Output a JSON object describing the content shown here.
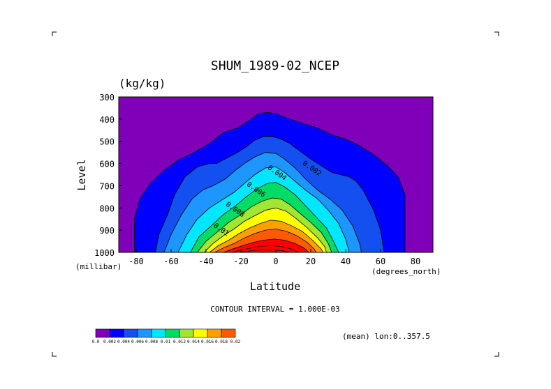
{
  "chart_data": {
    "type": "contour",
    "title": "SHUM_1989-02_NCEP",
    "units": "(kg/kg)",
    "xlabel": "Latitude",
    "ylabel": "Level",
    "x_unit_label": "(degrees_north)",
    "y_unit_label": "(millibar)",
    "xlim": [
      -90,
      90
    ],
    "ylim": [
      1000,
      300
    ],
    "x_ticks": [
      -80,
      -60,
      -40,
      -20,
      0,
      20,
      40,
      60,
      80
    ],
    "y_ticks": [
      300,
      400,
      500,
      600,
      700,
      800,
      900,
      1000
    ],
    "contour_interval_text": "CONTOUR INTERVAL = 1.000E-03",
    "footer_text": "(mean) lon:0..357.5",
    "colorbar": {
      "labels": [
        "0.0",
        "0.002",
        "0.004",
        "0.006",
        "0.008",
        "0.01",
        "0.012",
        "0.014",
        "0.016",
        "0.018",
        "0.02"
      ],
      "colors": [
        "#7f00b8",
        "#0000ff",
        "#1450f0",
        "#1e96ff",
        "#00e6ff",
        "#00dc64",
        "#a0e632",
        "#ffff00",
        "#ffa000",
        "#ff5a00",
        "#ff0000"
      ]
    },
    "contour_labels": [
      {
        "text": "0.002",
        "lat": 20,
        "lev": 630
      },
      {
        "text": "0.004",
        "lat": 0,
        "lev": 650
      },
      {
        "text": "0.006",
        "lat": -12,
        "lev": 725
      },
      {
        "text": "0.008",
        "lat": -24,
        "lev": 815
      },
      {
        "text": "0.01",
        "lat": -32,
        "lev": 905
      }
    ],
    "levels": [
      {
        "value": 0.001,
        "line": true,
        "fill": "#0000ff",
        "points": [
          [
            -81,
            1000
          ],
          [
            -81,
            850
          ],
          [
            -78,
            760
          ],
          [
            -72,
            690
          ],
          [
            -64,
            630
          ],
          [
            -56,
            585
          ],
          [
            -48,
            555
          ],
          [
            -38,
            510
          ],
          [
            -30,
            460
          ],
          [
            -22,
            440
          ],
          [
            -15,
            405
          ],
          [
            -10,
            375
          ],
          [
            -5,
            370
          ],
          [
            0,
            375
          ],
          [
            8,
            400
          ],
          [
            16,
            420
          ],
          [
            24,
            440
          ],
          [
            32,
            470
          ],
          [
            40,
            490
          ],
          [
            48,
            520
          ],
          [
            56,
            560
          ],
          [
            64,
            610
          ],
          [
            70,
            660
          ],
          [
            74,
            740
          ],
          [
            74,
            850
          ],
          [
            74,
            1000
          ]
        ]
      },
      {
        "value": 0.002,
        "line": true,
        "fill": "#1450f0",
        "points": [
          [
            -69,
            1000
          ],
          [
            -67,
            920
          ],
          [
            -62,
            830
          ],
          [
            -58,
            740
          ],
          [
            -52,
            660
          ],
          [
            -45,
            615
          ],
          [
            -38,
            600
          ],
          [
            -34,
            600
          ],
          [
            -28,
            575
          ],
          [
            -22,
            550
          ],
          [
            -17,
            525
          ],
          [
            -12,
            495
          ],
          [
            -7,
            478
          ],
          [
            -2,
            478
          ],
          [
            3,
            490
          ],
          [
            8,
            510
          ],
          [
            14,
            545
          ],
          [
            20,
            580
          ],
          [
            26,
            610
          ],
          [
            32,
            640
          ],
          [
            37,
            650
          ],
          [
            42,
            660
          ],
          [
            46,
            680
          ],
          [
            50,
            720
          ],
          [
            56,
            810
          ],
          [
            60,
            900
          ],
          [
            62,
            1000
          ]
        ]
      },
      {
        "value": 0.003,
        "line": true,
        "fill": "#1e96ff",
        "points": [
          [
            -64,
            1000
          ],
          [
            -60,
            920
          ],
          [
            -54,
            830
          ],
          [
            -48,
            760
          ],
          [
            -42,
            720
          ],
          [
            -36,
            700
          ],
          [
            -29,
            670
          ],
          [
            -23,
            630
          ],
          [
            -18,
            600
          ],
          [
            -12,
            570
          ],
          [
            -6,
            550
          ],
          [
            0,
            555
          ],
          [
            5,
            580
          ],
          [
            11,
            620
          ],
          [
            17,
            670
          ],
          [
            24,
            720
          ],
          [
            31,
            760
          ],
          [
            38,
            810
          ],
          [
            44,
            880
          ],
          [
            48,
            960
          ],
          [
            49,
            1000
          ]
        ]
      },
      {
        "value": 0.004,
        "line": true,
        "fill": "#00e6ff",
        "points": [
          [
            -56,
            1000
          ],
          [
            -51,
            920
          ],
          [
            -45,
            850
          ],
          [
            -38,
            800
          ],
          [
            -31,
            765
          ],
          [
            -24,
            730
          ],
          [
            -18,
            690
          ],
          [
            -12,
            650
          ],
          [
            -6,
            620
          ],
          [
            0,
            615
          ],
          [
            5,
            640
          ],
          [
            11,
            680
          ],
          [
            17,
            720
          ],
          [
            24,
            760
          ],
          [
            30,
            810
          ],
          [
            36,
            870
          ],
          [
            40,
            940
          ],
          [
            42,
            1000
          ]
        ]
      },
      {
        "value": 0.005,
        "line": true,
        "fill": "#00dc64",
        "points": [
          [
            -49,
            1000
          ],
          [
            -44,
            930
          ],
          [
            -37,
            880
          ],
          [
            -30,
            830
          ],
          [
            -23,
            790
          ],
          [
            -17,
            750
          ],
          [
            -11,
            715
          ],
          [
            -5,
            690
          ],
          [
            0,
            685
          ],
          [
            5,
            705
          ],
          [
            11,
            740
          ],
          [
            17,
            790
          ],
          [
            23,
            840
          ],
          [
            29,
            890
          ],
          [
            33,
            950
          ],
          [
            36,
            1000
          ]
        ]
      },
      {
        "value": 0.006,
        "line": true,
        "fill": "#a0e632",
        "points": [
          [
            -45,
            1000
          ],
          [
            -40,
            950
          ],
          [
            -33,
            905
          ],
          [
            -27,
            865
          ],
          [
            -20,
            830
          ],
          [
            -14,
            795
          ],
          [
            -8,
            770
          ],
          [
            -2,
            755
          ],
          [
            3,
            760
          ],
          [
            8,
            785
          ],
          [
            14,
            825
          ],
          [
            20,
            865
          ],
          [
            26,
            910
          ],
          [
            30,
            960
          ],
          [
            32,
            1000
          ]
        ]
      },
      {
        "value": 0.007,
        "line": true,
        "fill": "#ffff00",
        "points": [
          [
            -41,
            1000
          ],
          [
            -36,
            960
          ],
          [
            -30,
            925
          ],
          [
            -24,
            895
          ],
          [
            -18,
            860
          ],
          [
            -12,
            835
          ],
          [
            -6,
            810
          ],
          [
            0,
            800
          ],
          [
            6,
            815
          ],
          [
            12,
            850
          ],
          [
            18,
            890
          ],
          [
            24,
            935
          ],
          [
            28,
            975
          ],
          [
            29,
            1000
          ]
        ]
      },
      {
        "value": 0.008,
        "line": true,
        "fill": "#ffa000",
        "points": [
          [
            -38,
            1000
          ],
          [
            -33,
            970
          ],
          [
            -27,
            945
          ],
          [
            -21,
            915
          ],
          [
            -15,
            890
          ],
          [
            -9,
            870
          ],
          [
            -3,
            855
          ],
          [
            3,
            860
          ],
          [
            9,
            880
          ],
          [
            15,
            905
          ],
          [
            21,
            945
          ],
          [
            26,
            985
          ],
          [
            27,
            1000
          ]
        ]
      },
      {
        "value": 0.009,
        "line": true,
        "fill": "#ff5a00",
        "points": [
          [
            -35,
            1000
          ],
          [
            -30,
            980
          ],
          [
            -24,
            960
          ],
          [
            -18,
            935
          ],
          [
            -12,
            915
          ],
          [
            -6,
            900
          ],
          [
            0,
            895
          ],
          [
            6,
            905
          ],
          [
            12,
            925
          ],
          [
            18,
            955
          ],
          [
            22,
            985
          ],
          [
            23,
            1000
          ]
        ]
      },
      {
        "value": 0.01,
        "line": true,
        "fill": "#ff0000",
        "points": [
          [
            -30,
            1000
          ],
          [
            -25,
            985
          ],
          [
            -19,
            970
          ],
          [
            -13,
            955
          ],
          [
            -7,
            945
          ],
          [
            -1,
            940
          ],
          [
            5,
            945
          ],
          [
            11,
            960
          ],
          [
            16,
            980
          ],
          [
            19,
            1000
          ]
        ]
      },
      {
        "value": 0.011,
        "line": true,
        "fill": null,
        "points": [
          [
            -25,
            1000
          ],
          [
            -20,
            990
          ],
          [
            -14,
            980
          ],
          [
            -8,
            972
          ],
          [
            -2,
            970
          ],
          [
            4,
            975
          ],
          [
            9,
            985
          ],
          [
            13,
            1000
          ]
        ]
      },
      {
        "value": 0.012,
        "line": true,
        "fill": null,
        "points": [
          [
            -20,
            1000
          ],
          [
            -14,
            992
          ],
          [
            -8,
            988
          ],
          [
            -2,
            988
          ],
          [
            4,
            993
          ],
          [
            8,
            1000
          ]
        ]
      }
    ]
  }
}
